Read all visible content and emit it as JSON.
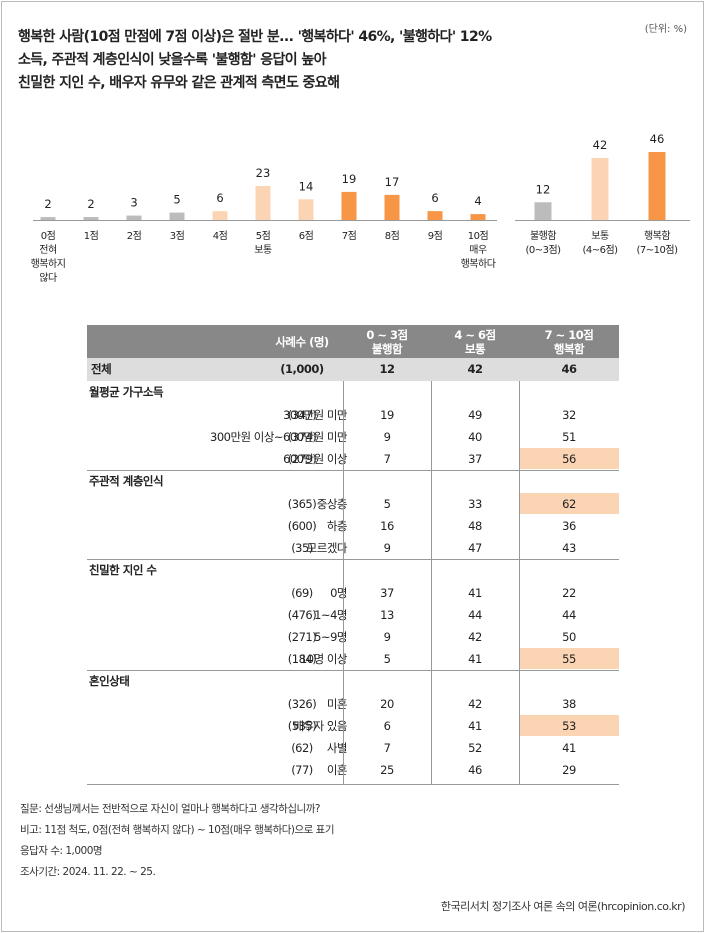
{
  "unit": "(단위: %)",
  "headline": [
    "행복한 사람(10점 만점에 7점 이상)은 절반 분... '행복하다' 46%, '불행하다' 12%",
    "소득, 주관적 계층인식이 낮을수록 '불행함' 응답이 높아",
    "친밀한 지인 수, 배우자 유무와 같은 관계적 측면도 중요해"
  ],
  "chart_data": [
    {
      "type": "bar",
      "categories": [
        "0점 전혀 행복하지 않다",
        "1점",
        "2점",
        "3점",
        "4점",
        "5점 보통",
        "6점",
        "7점",
        "8점",
        "9점",
        "10점 매우 행복하다"
      ],
      "category_labels": [
        [
          "0점",
          "전혀",
          "행복하지",
          "않다"
        ],
        [
          "1점"
        ],
        [
          "2점"
        ],
        [
          "3점"
        ],
        [
          "4점"
        ],
        [
          "5점",
          "보통"
        ],
        [
          "6점"
        ],
        [
          "7점"
        ],
        [
          "8점"
        ],
        [
          "9점"
        ],
        [
          "10점",
          "매우",
          "행복하다"
        ]
      ],
      "values": [
        2,
        2,
        3,
        5,
        6,
        23,
        14,
        19,
        17,
        6,
        4
      ],
      "colors": [
        "#bcbcbc",
        "#bcbcbc",
        "#bcbcbc",
        "#bcbcbc",
        "#fbd4b4",
        "#fbd4b4",
        "#fbd4b4",
        "#f79646",
        "#f79646",
        "#f79646",
        "#f79646"
      ],
      "ylim": [
        0,
        46
      ]
    },
    {
      "type": "bar",
      "categories": [
        "불행함 (0~3점)",
        "보통 (4~6점)",
        "행복함 (7~10점)"
      ],
      "category_labels": [
        [
          "불행함",
          "(0~3점)"
        ],
        [
          "보통",
          "(4~6점)"
        ],
        [
          "행복함",
          "(7~10점)"
        ]
      ],
      "values": [
        12,
        42,
        46
      ],
      "colors": [
        "#bcbcbc",
        "#fbd4b4",
        "#f79646"
      ],
      "ylim": [
        0,
        46
      ]
    },
    {
      "type": "table",
      "header": {
        "n": "사례수 (명)",
        "c1": [
          "0 ~ 3점",
          "불행함"
        ],
        "c2": [
          "4 ~ 6점",
          "보통"
        ],
        "c3": [
          "7 ~ 10점",
          "행복함"
        ]
      },
      "total": {
        "label": "전체",
        "n": "(1,000)",
        "v": [
          "12",
          "42",
          "46"
        ]
      },
      "sections": [
        {
          "title": "월평균 가구소득",
          "rows": [
            {
              "label": "300만원 미만",
              "n": "(347)",
              "v": [
                "19",
                "49",
                "32"
              ],
              "hl": false
            },
            {
              "label": "300만원 이상~600만원 미만",
              "n": "(374)",
              "v": [
                "9",
                "40",
                "51"
              ],
              "hl": false
            },
            {
              "label": "600만원 이상",
              "n": "(279)",
              "v": [
                "7",
                "37",
                "56"
              ],
              "hl": true
            }
          ]
        },
        {
          "title": "주관적 계층인식",
          "rows": [
            {
              "label": "중상층",
              "n": "(365)",
              "v": [
                "5",
                "33",
                "62"
              ],
              "hl": true
            },
            {
              "label": "하층",
              "n": "(600)",
              "v": [
                "16",
                "48",
                "36"
              ],
              "hl": false
            },
            {
              "label": "모르겠다",
              "n": "(35)",
              "v": [
                "9",
                "47",
                "43"
              ],
              "hl": false
            }
          ]
        },
        {
          "title": "친밀한 지인 수",
          "rows": [
            {
              "label": "0명",
              "n": "(69)",
              "v": [
                "37",
                "41",
                "22"
              ],
              "hl": false
            },
            {
              "label": "1~4명",
              "n": "(476)",
              "v": [
                "13",
                "44",
                "44"
              ],
              "hl": false
            },
            {
              "label": "5~9명",
              "n": "(271)",
              "v": [
                "9",
                "42",
                "50"
              ],
              "hl": false
            },
            {
              "label": "10명 이상",
              "n": "(184)",
              "v": [
                "5",
                "41",
                "55"
              ],
              "hl": true
            }
          ]
        },
        {
          "title": "혼인상태",
          "rows": [
            {
              "label": "미혼",
              "n": "(326)",
              "v": [
                "20",
                "42",
                "38"
              ],
              "hl": false
            },
            {
              "label": "배우자 있음",
              "n": "(535)",
              "v": [
                "6",
                "41",
                "53"
              ],
              "hl": true
            },
            {
              "label": "사별",
              "n": "(62)",
              "v": [
                "7",
                "52",
                "41"
              ],
              "hl": false
            },
            {
              "label": "이혼",
              "n": "(77)",
              "v": [
                "25",
                "46",
                "29"
              ],
              "hl": false
            }
          ]
        }
      ]
    }
  ],
  "notes": [
    "질문: 선생님께서는 전반적으로 자신이 얼마나 행복하다고 생각하십니까?",
    "비고: 11점 척도, 0점(전혀 행복하지 않다) ~ 10점(매우 행복하다)으로 표기",
    "응답자 수: 1,000명",
    "조사기간: 2024. 11. 22. ~ 25."
  ],
  "source": "한국리서치 정기조사 여론 속의 여론(hrcopinion.co.kr)"
}
